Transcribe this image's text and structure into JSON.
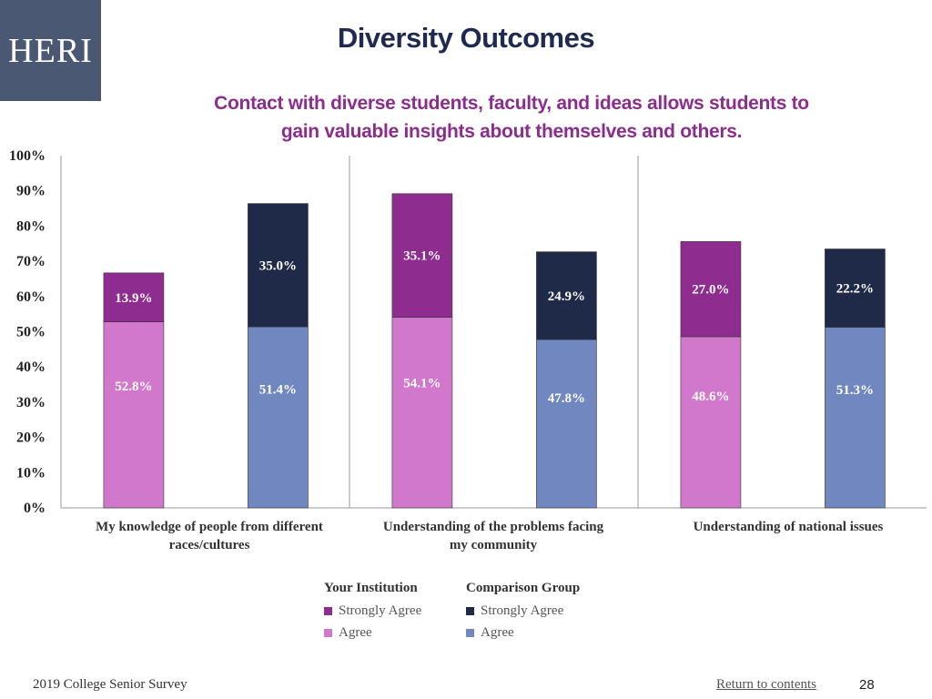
{
  "logo": {
    "text": "HERI"
  },
  "header": {
    "title": "Diversity Outcomes",
    "subtitle_line1": "Contact with diverse students, faculty, and ideas allows students to",
    "subtitle_line2": "gain valuable insights about themselves and others."
  },
  "colors": {
    "inst_agree": "#d278cc",
    "inst_strong": "#8e2d8f",
    "comp_agree": "#7087c0",
    "comp_strong": "#1f2a48",
    "label_light": "#ffffff",
    "label_dark": "#ffffff"
  },
  "chart_data": {
    "type": "bar",
    "stacked": true,
    "title": "Diversity Outcomes",
    "ylim": [
      0,
      100
    ],
    "yticks": [
      "0%",
      "10%",
      "20%",
      "30%",
      "40%",
      "50%",
      "60%",
      "70%",
      "80%",
      "90%",
      "100%"
    ],
    "categories": [
      {
        "line1": "My knowledge of people from different",
        "line2": "races/cultures"
      },
      {
        "line1": "Understanding of the problems facing",
        "line2": "my community"
      },
      {
        "line1": "Understanding of national issues",
        "line2": ""
      }
    ],
    "series": [
      {
        "group": "Your Institution",
        "name": "Agree",
        "values": [
          52.8,
          54.1,
          48.6
        ],
        "labels": [
          "52.8%",
          "54.1%",
          "48.6%"
        ]
      },
      {
        "group": "Your Institution",
        "name": "Strongly Agree",
        "values": [
          13.9,
          35.1,
          27.0
        ],
        "labels": [
          "13.9%",
          "35.1%",
          "27.0%"
        ]
      },
      {
        "group": "Comparison Group",
        "name": "Agree",
        "values": [
          51.4,
          47.8,
          51.3
        ],
        "labels": [
          "51.4%",
          "47.8%",
          "51.3%"
        ]
      },
      {
        "group": "Comparison Group",
        "name": "Strongly Agree",
        "values": [
          35.0,
          24.9,
          22.2
        ],
        "labels": [
          "35.0%",
          "24.9%",
          "22.2%"
        ]
      }
    ]
  },
  "legend": {
    "inst_header": "Your Institution",
    "comp_header": "Comparison Group",
    "strongly_agree": "Strongly Agree",
    "agree": "Agree"
  },
  "footer": {
    "survey": "2019 College Senior Survey",
    "return_link": "Return to contents",
    "page_number": "28"
  }
}
